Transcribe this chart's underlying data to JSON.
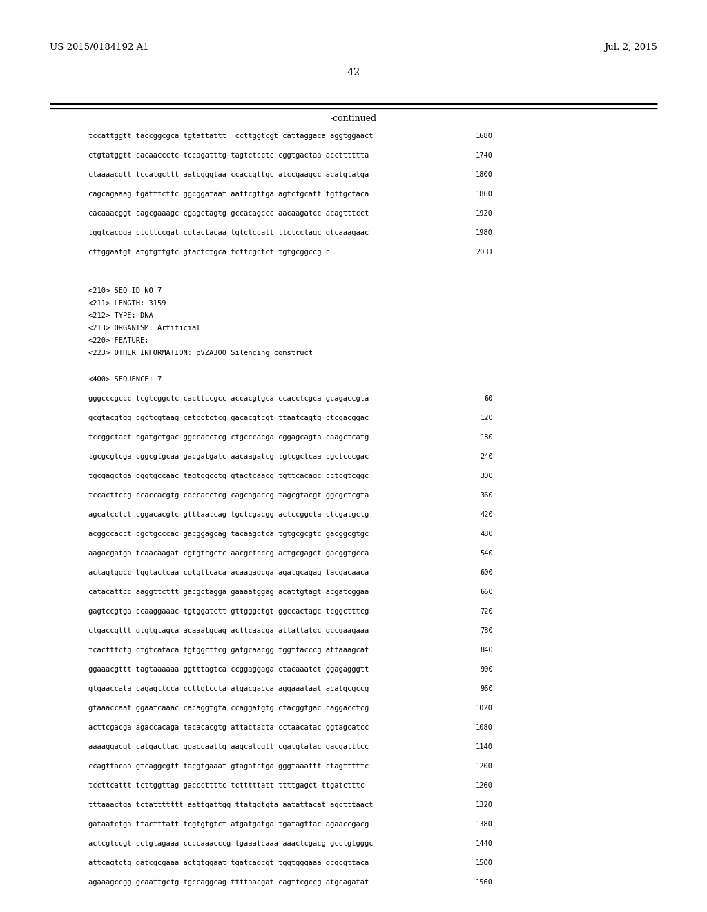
{
  "header_left": "US 2015/0184192 A1",
  "header_right": "Jul. 2, 2015",
  "page_number": "42",
  "continued_label": "-continued",
  "background_color": "#ffffff",
  "text_color": "#000000",
  "sequence_lines_top": [
    {
      "seq": "tccattggtt taccggcgca tgtattattt  ccttggtcgt cattaggaca aggtggaact",
      "num": "1680"
    },
    {
      "seq": "ctgtatggtt cacaaccctc tccagatttg tagtctcctc cggtgactaa acctttttta",
      "num": "1740"
    },
    {
      "seq": "ctaaaacgtt tccatgcttt aatcgggtaa ccaccgttgc atccgaagcc acatgtatga",
      "num": "1800"
    },
    {
      "seq": "cagcagaaag tgatttcttc ggcggataat aattcgttga agtctgcatt tgttgctaca",
      "num": "1860"
    },
    {
      "seq": "cacaaacggt cagcgaaagc cgagctagtg gccacagccc aacaagatcc acagtttcct",
      "num": "1920"
    },
    {
      "seq": "tggtcacgga ctcttccgat cgtactacaa tgtctccatt ttctcctagc gtcaaagaac",
      "num": "1980"
    },
    {
      "seq": "cttggaatgt atgtgttgtc gtactctgca tcttcgctct tgtgcggccg c",
      "num": "2031"
    }
  ],
  "metadata_lines": [
    "<210> SEQ ID NO 7",
    "<211> LENGTH: 3159",
    "<212> TYPE: DNA",
    "<213> ORGANISM: Artificial",
    "<220> FEATURE:",
    "<223> OTHER INFORMATION: pVZA300 Silencing construct"
  ],
  "sequence_label": "<400> SEQUENCE: 7",
  "sequence_lines_bottom": [
    {
      "seq": "gggcccgccc tcgtcggctc cacttccgcc accacgtgca ccacctcgca gcagaccgta",
      "num": "60"
    },
    {
      "seq": "gcgtacgtgg cgctcgtaag catcctctcg gacacgtcgt ttaatcagtg ctcgacggac",
      "num": "120"
    },
    {
      "seq": "tccggctact cgatgctgac ggccacctcg ctgcccacga cggagcagta caagctcatg",
      "num": "180"
    },
    {
      "seq": "tgcgcgtcga cggcgtgcaa gacgatgatc aacaagatcg tgtcgctcaa cgctcccgac",
      "num": "240"
    },
    {
      "seq": "tgcgagctga cggtgccaac tagtggcctg gtactcaacg tgttcacagc cctcgtcggc",
      "num": "300"
    },
    {
      "seq": "tccacttccg ccaccacgtg caccacctcg cagcagaccg tagcgtacgt ggcgctcgta",
      "num": "360"
    },
    {
      "seq": "agcatcctct cggacacgtc gtttaatcag tgctcgacgg actccggcta ctcgatgctg",
      "num": "420"
    },
    {
      "seq": "acggccacct cgctgcccac gacggagcag tacaagctca tgtgcgcgtc gacggcgtgc",
      "num": "480"
    },
    {
      "seq": "aagacgatga tcaacaagat cgtgtcgctc aacgctcccg actgcgagct gacggtgcca",
      "num": "540"
    },
    {
      "seq": "actagtggcc tggtactcaa cgtgttcaca acaagagcga agatgcagag tacgacaaca",
      "num": "600"
    },
    {
      "seq": "catacattcc aaggttcttt gacgctagga gaaaatggag acattgtagt acgatcggaa",
      "num": "660"
    },
    {
      "seq": "gagtccgtga ccaaggaaac tgtggatctt gttgggctgt ggccactagc tcggctttcg",
      "num": "720"
    },
    {
      "seq": "ctgaccgttt gtgtgtagca acaaatgcag acttcaacga attattatcc gccgaagaaa",
      "num": "780"
    },
    {
      "seq": "tcactttctg ctgtcataca tgtggcttcg gatgcaacgg tggttacccg attaaagcat",
      "num": "840"
    },
    {
      "seq": "ggaaacgttt tagtaaaaaa ggtttagtca ccggaggaga ctacaaatct ggagagggtt",
      "num": "900"
    },
    {
      "seq": "gtgaaccata cagagttcca ccttgtccta atgacgacca aggaaataat acatgcgccg",
      "num": "960"
    },
    {
      "seq": "gtaaaccaat ggaatcaaac cacaggtgta ccaggatgtg ctacggtgac caggacctcg",
      "num": "1020"
    },
    {
      "seq": "acttcgacga agaccacaga tacacacgtg attactacta cctaacatac ggtagcatcc",
      "num": "1080"
    },
    {
      "seq": "aaaaggacgt catgacttac ggaccaattg aagcatcgtt cgatgtatac gacgatttcc",
      "num": "1140"
    },
    {
      "seq": "ccagttacaa gtcaggcgtt tacgtgaaat gtagatctga gggtaaattt ctagtttttc",
      "num": "1200"
    },
    {
      "seq": "tccttcattt tcttggttag gacccttttc tctttttatt ttttgagct ttgatctttc",
      "num": "1260"
    },
    {
      "seq": "tttaaactga tctattttttt aattgattgg ttatggtgta aatattacat agctttaact",
      "num": "1320"
    },
    {
      "seq": "gataatctga ttactttatt tcgtgtgtct atgatgatga tgatagttac agaaccgacg",
      "num": "1380"
    },
    {
      "seq": "actcgtccgt cctgtagaaa ccccaaacccg tgaaatcaaa aaactcgacg gcctgtgggc",
      "num": "1440"
    },
    {
      "seq": "attcagtctg gatcgcgaaa actgtggaat tgatcagcgt tggtgggaaa gcgcgttaca",
      "num": "1500"
    },
    {
      "seq": "agaaagccgg gcaattgctg tgccaggcag ttttaacgat cagttcgccg atgcagatat",
      "num": "1560"
    }
  ]
}
